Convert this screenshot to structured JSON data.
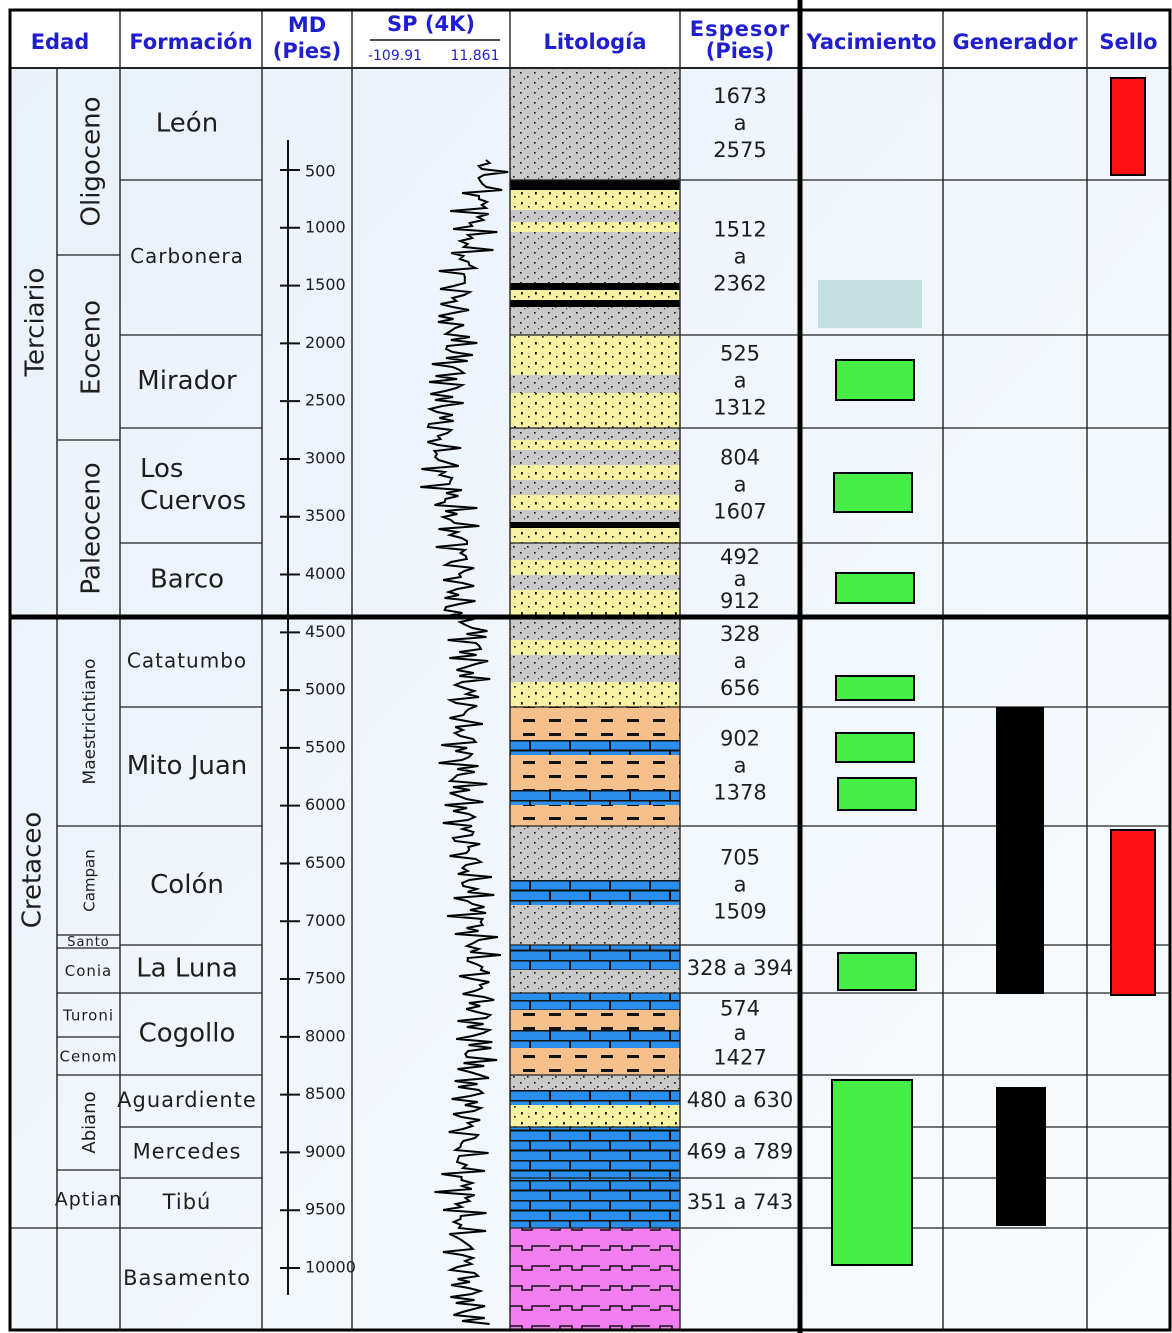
{
  "headers": {
    "edad": "Edad",
    "formacion": "Formación",
    "md": [
      "MD",
      "(Pies)"
    ],
    "sp": {
      "title": "SP (4K)",
      "min": "-109.91",
      "max": "11.861"
    },
    "litologia": "Litología",
    "espesor": [
      "Espesor",
      "(Pies)"
    ],
    "yacimiento": "Yacimiento",
    "generador": "Generador",
    "sello": "Sello"
  },
  "eras": [
    "Terciario",
    "Cretaceo"
  ],
  "epochs": [
    "Oligoceno",
    "Eoceno",
    "Paleoceno",
    "Maestrichtiano",
    "Campan",
    "Santo",
    "Conia",
    "Turoni",
    "Cenom",
    "Abiano",
    "Aptian"
  ],
  "formations": [
    {
      "name": [
        "León"
      ],
      "thickness": [
        "1673",
        "a",
        "2575"
      ]
    },
    {
      "name": [
        "Carbonera"
      ],
      "thickness": [
        "1512",
        "a",
        "2362"
      ]
    },
    {
      "name": [
        "Mirador"
      ],
      "thickness": [
        "525",
        "a",
        "1312"
      ]
    },
    {
      "name": [
        "Los",
        "Cuervos"
      ],
      "thickness": [
        "804",
        "a",
        "1607"
      ]
    },
    {
      "name": [
        "Barco"
      ],
      "thickness": [
        "492",
        "a",
        "912"
      ]
    },
    {
      "name": [
        "Catatumbo"
      ],
      "thickness": [
        "328",
        "a",
        "656"
      ]
    },
    {
      "name": [
        "Mito Juan"
      ],
      "thickness": [
        "902",
        "a",
        "1378"
      ]
    },
    {
      "name": [
        "Colón"
      ],
      "thickness": [
        "705",
        "a",
        "1509"
      ]
    },
    {
      "name": [
        "La Luna"
      ],
      "thickness": [
        "328 a 394"
      ]
    },
    {
      "name": [
        "Cogollo"
      ],
      "thickness": [
        "574",
        "a",
        "1427"
      ]
    },
    {
      "name": [
        "Aguardiente"
      ],
      "thickness": [
        "480 a 630"
      ]
    },
    {
      "name": [
        "Mercedes"
      ],
      "thickness": [
        "469 a 789"
      ]
    },
    {
      "name": [
        "Tibú"
      ],
      "thickness": [
        "351 a 743"
      ]
    },
    {
      "name": [
        "Basamento"
      ],
      "thickness": []
    }
  ],
  "md_ticks": [
    500,
    1000,
    1500,
    2000,
    2500,
    3000,
    3500,
    4000,
    4500,
    5000,
    5500,
    6000,
    6500,
    7000,
    7500,
    8000,
    8500,
    9000,
    9500,
    10000
  ]
}
